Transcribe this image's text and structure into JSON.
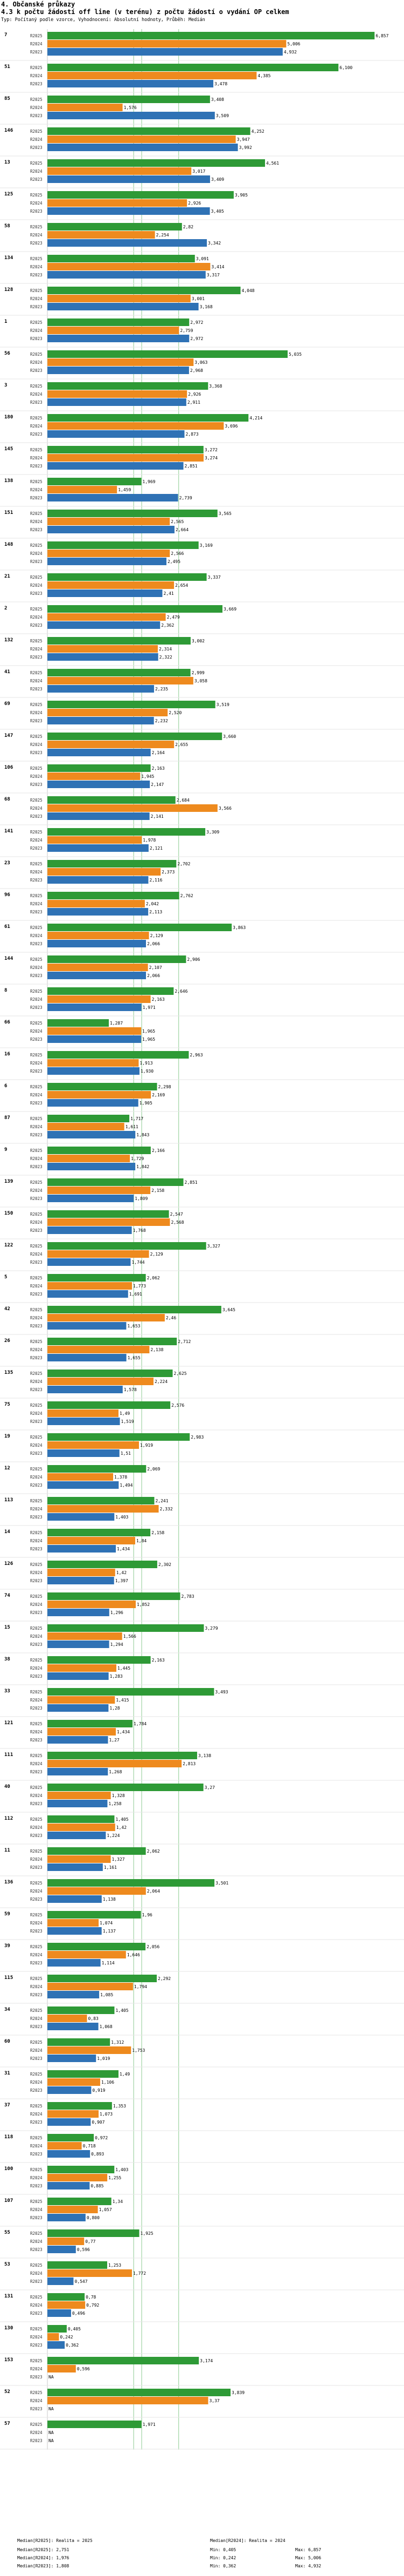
{
  "header": {
    "section": "4. Občanské průkazy",
    "title": "4.3 k počtu žádostí off line (v terénu) z počtu žádostí o vydání OP celkem",
    "meta": "Typ: Počítaný podle vzorce, Vyhodnocení: Absolutní hodnoty, Průběh: Medián"
  },
  "colors": {
    "R2025": "#2e9a36",
    "R2024": "#ee8a1e",
    "R2023": "#2f72b5",
    "median": "#9fd3a3"
  },
  "chart_data": {
    "type": "bar",
    "orientation": "horizontal",
    "series_names": [
      "R2025",
      "R2024",
      "R2023"
    ],
    "xlim": [
      0,
      7.0
    ],
    "medians": {
      "R2025": 2.751,
      "R2024": 1.976,
      "R2023": 1.808
    },
    "groups": [
      {
        "id": "7",
        "values": [
          6.857,
          5.006,
          4.932
        ],
        "labels": [
          "6,857",
          "5,006",
          "4,932"
        ]
      },
      {
        "id": "51",
        "values": [
          6.1,
          4.385,
          3.478
        ],
        "labels": [
          "6,100",
          "4,385",
          "3,478"
        ]
      },
      {
        "id": "85",
        "values": [
          3.408,
          1.576,
          3.509
        ],
        "labels": [
          "3,408",
          "1,576",
          "3,509"
        ]
      },
      {
        "id": "146",
        "values": [
          4.252,
          3.947,
          3.992
        ],
        "labels": [
          "4,252",
          "3,947",
          "3,992"
        ]
      },
      {
        "id": "13",
        "values": [
          4.561,
          3.017,
          3.409
        ],
        "labels": [
          "4,561",
          "3,017",
          "3,409"
        ]
      },
      {
        "id": "125",
        "values": [
          3.905,
          2.926,
          3.405
        ],
        "labels": [
          "3,905",
          "2,926",
          "3,405"
        ]
      },
      {
        "id": "58",
        "values": [
          2.82,
          2.254,
          3.342
        ],
        "labels": [
          "2,82",
          "2,254",
          "3,342"
        ]
      },
      {
        "id": "134",
        "values": [
          3.091,
          3.414,
          3.317
        ],
        "labels": [
          "3,091",
          "3,414",
          "3,317"
        ]
      },
      {
        "id": "128",
        "values": [
          4.048,
          3.001,
          3.168
        ],
        "labels": [
          "4,048",
          "3,001",
          "3,168"
        ]
      },
      {
        "id": "1",
        "values": [
          2.972,
          2.759,
          2.972
        ],
        "labels": [
          "2,972",
          "2,759",
          "2,972"
        ]
      },
      {
        "id": "56",
        "values": [
          5.035,
          3.063,
          2.968
        ],
        "labels": [
          "5,035",
          "3,063",
          "2,968"
        ]
      },
      {
        "id": "3",
        "values": [
          3.368,
          2.926,
          2.911
        ],
        "labels": [
          "3,368",
          "2,926",
          "2,911"
        ]
      },
      {
        "id": "180",
        "values": [
          4.214,
          3.696,
          2.873
        ],
        "labels": [
          "4,214",
          "3,696",
          "2,873"
        ]
      },
      {
        "id": "145",
        "values": [
          3.272,
          3.274,
          2.851
        ],
        "labels": [
          "3,272",
          "3,274",
          "2,851"
        ]
      },
      {
        "id": "138",
        "values": [
          1.969,
          1.459,
          2.739
        ],
        "labels": [
          "1,969",
          "1,459",
          "2,739"
        ]
      },
      {
        "id": "151",
        "values": [
          3.565,
          2.565,
          2.664
        ],
        "labels": [
          "3,565",
          "2,565",
          "2,664"
        ]
      },
      {
        "id": "148",
        "values": [
          3.169,
          2.566,
          2.495
        ],
        "labels": [
          "3,169",
          "2,566",
          "2,495"
        ]
      },
      {
        "id": "21",
        "values": [
          3.337,
          2.654,
          2.41
        ],
        "labels": [
          "3,337",
          "2,654",
          "2,41"
        ]
      },
      {
        "id": "2",
        "values": [
          3.669,
          2.479,
          2.362
        ],
        "labels": [
          "3,669",
          "2,479",
          "2,362"
        ]
      },
      {
        "id": "132",
        "values": [
          3.002,
          2.314,
          2.322
        ],
        "labels": [
          "3,002",
          "2,314",
          "2,322"
        ]
      },
      {
        "id": "41",
        "values": [
          2.999,
          3.058,
          2.235
        ],
        "labels": [
          "2,999",
          "3,058",
          "2,235"
        ]
      },
      {
        "id": "69",
        "values": [
          3.519,
          2.52,
          2.232
        ],
        "labels": [
          "3,519",
          "2,520",
          "2,232"
        ]
      },
      {
        "id": "147",
        "values": [
          3.66,
          2.655,
          2.164
        ],
        "labels": [
          "3,660",
          "2,655",
          "2,164"
        ]
      },
      {
        "id": "106",
        "values": [
          2.163,
          1.945,
          2.147
        ],
        "labels": [
          "2,163",
          "1,945",
          "2,147"
        ]
      },
      {
        "id": "68",
        "values": [
          2.684,
          3.566,
          2.141
        ],
        "labels": [
          "2,684",
          "3,566",
          "2,141"
        ]
      },
      {
        "id": "141",
        "values": [
          3.309,
          1.978,
          2.121
        ],
        "labels": [
          "3,309",
          "1,978",
          "2,121"
        ]
      },
      {
        "id": "23",
        "values": [
          2.702,
          2.373,
          2.116
        ],
        "labels": [
          "2,702",
          "2,373",
          "2,116"
        ]
      },
      {
        "id": "96",
        "values": [
          2.762,
          2.042,
          2.113
        ],
        "labels": [
          "2,762",
          "2,042",
          "2,113"
        ]
      },
      {
        "id": "61",
        "values": [
          3.863,
          2.129,
          2.066
        ],
        "labels": [
          "3,863",
          "2,129",
          "2,066"
        ]
      },
      {
        "id": "144",
        "values": [
          2.906,
          2.107,
          2.066
        ],
        "labels": [
          "2,906",
          "2,107",
          "2,066"
        ]
      },
      {
        "id": "8",
        "values": [
          2.646,
          2.163,
          1.971
        ],
        "labels": [
          "2,646",
          "2,163",
          "1,971"
        ]
      },
      {
        "id": "66",
        "values": [
          1.287,
          1.965,
          1.965
        ],
        "labels": [
          "1,287",
          "1,965",
          "1,965"
        ]
      },
      {
        "id": "16",
        "values": [
          2.963,
          1.913,
          1.93
        ],
        "labels": [
          "2,963",
          "1,913",
          "1,930"
        ]
      },
      {
        "id": "6",
        "values": [
          2.298,
          2.169,
          1.905
        ],
        "labels": [
          "2,298",
          "2,169",
          "1,905"
        ]
      },
      {
        "id": "87",
        "values": [
          1.717,
          1.611,
          1.843
        ],
        "labels": [
          "1,717",
          "1,611",
          "1,843"
        ]
      },
      {
        "id": "9",
        "values": [
          2.166,
          1.729,
          1.842
        ],
        "labels": [
          "2,166",
          "1,729",
          "1,842"
        ]
      },
      {
        "id": "139",
        "values": [
          2.851,
          2.158,
          1.809
        ],
        "labels": [
          "2,851",
          "2,158",
          "1,809"
        ]
      },
      {
        "id": "150",
        "values": [
          2.547,
          2.568,
          1.768
        ],
        "labels": [
          "2,547",
          "2,568",
          "1,768"
        ]
      },
      {
        "id": "122",
        "values": [
          3.327,
          2.129,
          1.744
        ],
        "labels": [
          "3,327",
          "2,129",
          "1,744"
        ]
      },
      {
        "id": "5",
        "values": [
          2.062,
          1.773,
          1.691
        ],
        "labels": [
          "2,062",
          "1,773",
          "1,691"
        ]
      },
      {
        "id": "42",
        "values": [
          3.645,
          2.46,
          1.653
        ],
        "labels": [
          "3,645",
          "2,46",
          "1,653"
        ]
      },
      {
        "id": "26",
        "values": [
          2.712,
          2.138,
          1.655
        ],
        "labels": [
          "2,712",
          "2,138",
          "1,655"
        ]
      },
      {
        "id": "135",
        "values": [
          2.625,
          2.224,
          1.578
        ],
        "labels": [
          "2,625",
          "2,224",
          "1,578"
        ]
      },
      {
        "id": "75",
        "values": [
          2.576,
          1.49,
          1.519
        ],
        "labels": [
          "2,576",
          "1,49",
          "1,519"
        ]
      },
      {
        "id": "19",
        "values": [
          2.983,
          1.919,
          1.51
        ],
        "labels": [
          "2,983",
          "1,919",
          "1,51"
        ]
      },
      {
        "id": "12",
        "values": [
          2.069,
          1.378,
          1.494
        ],
        "labels": [
          "2,069",
          "1,378",
          "1,494"
        ]
      },
      {
        "id": "113",
        "values": [
          2.241,
          2.332,
          1.403
        ],
        "labels": [
          "2,241",
          "2,332",
          "1,403"
        ]
      },
      {
        "id": "14",
        "values": [
          2.158,
          1.84,
          1.434
        ],
        "labels": [
          "2,158",
          "1,84",
          "1,434"
        ]
      },
      {
        "id": "126",
        "values": [
          2.302,
          1.42,
          1.397
        ],
        "labels": [
          "2,302",
          "1,42",
          "1,397"
        ]
      },
      {
        "id": "74",
        "values": [
          2.783,
          1.852,
          1.296
        ],
        "labels": [
          "2,783",
          "1,852",
          "1,296"
        ]
      },
      {
        "id": "15",
        "values": [
          3.279,
          1.566,
          1.294
        ],
        "labels": [
          "3,279",
          "1,566",
          "1,294"
        ]
      },
      {
        "id": "38",
        "values": [
          2.163,
          1.445,
          1.283
        ],
        "labels": [
          "2,163",
          "1,445",
          "1,283"
        ]
      },
      {
        "id": "33",
        "values": [
          3.493,
          1.415,
          1.28
        ],
        "labels": [
          "3,493",
          "1,415",
          "1,28"
        ]
      },
      {
        "id": "121",
        "values": [
          1.784,
          1.434,
          1.27
        ],
        "labels": [
          "1,784",
          "1,434",
          "1,27"
        ]
      },
      {
        "id": "111",
        "values": [
          3.138,
          2.813,
          1.268
        ],
        "labels": [
          "3,138",
          "2,813",
          "1,268"
        ]
      },
      {
        "id": "40",
        "values": [
          3.27,
          1.328,
          1.258
        ],
        "labels": [
          "3,27",
          "1,328",
          "1,258"
        ]
      },
      {
        "id": "112",
        "values": [
          1.405,
          1.42,
          1.224
        ],
        "labels": [
          "1,405",
          "1,42",
          "1,224"
        ]
      },
      {
        "id": "11",
        "values": [
          2.062,
          1.327,
          1.161
        ],
        "labels": [
          "2,062",
          "1,327",
          "1,161"
        ]
      },
      {
        "id": "136",
        "values": [
          3.501,
          2.064,
          1.138
        ],
        "labels": [
          "3,501",
          "2,064",
          "1,138"
        ]
      },
      {
        "id": "59",
        "values": [
          1.96,
          1.074,
          1.137
        ],
        "labels": [
          "1,96",
          "1,074",
          "1,137"
        ]
      },
      {
        "id": "39",
        "values": [
          2.056,
          1.646,
          1.114
        ],
        "labels": [
          "2,056",
          "1,646",
          "1,114"
        ]
      },
      {
        "id": "115",
        "values": [
          2.292,
          1.794,
          1.085
        ],
        "labels": [
          "2,292",
          "1,794",
          "1,085"
        ]
      },
      {
        "id": "34",
        "values": [
          1.405,
          0.83,
          1.068
        ],
        "labels": [
          "1,405",
          "0,83",
          "1,068"
        ]
      },
      {
        "id": "60",
        "values": [
          1.312,
          1.753,
          1.019
        ],
        "labels": [
          "1,312",
          "1,753",
          "1,019"
        ]
      },
      {
        "id": "31",
        "values": [
          1.49,
          1.106,
          0.919
        ],
        "labels": [
          "1,49",
          "1,106",
          "0,919"
        ]
      },
      {
        "id": "37",
        "values": [
          1.353,
          1.073,
          0.907
        ],
        "labels": [
          "1,353",
          "1,073",
          "0,907"
        ]
      },
      {
        "id": "118",
        "values": [
          0.972,
          0.718,
          0.893
        ],
        "labels": [
          "0,972",
          "0,718",
          "0,893"
        ]
      },
      {
        "id": "100",
        "values": [
          1.403,
          1.255,
          0.885
        ],
        "labels": [
          "1,403",
          "1,255",
          "0,885"
        ]
      },
      {
        "id": "107",
        "values": [
          1.34,
          1.057,
          0.8
        ],
        "labels": [
          "1,34",
          "1,057",
          "0,800"
        ]
      },
      {
        "id": "55",
        "values": [
          1.925,
          0.77,
          0.596
        ],
        "labels": [
          "1,925",
          "0,77",
          "0,596"
        ]
      },
      {
        "id": "53",
        "values": [
          1.253,
          1.772,
          0.547
        ],
        "labels": [
          "1,253",
          "1,772",
          "0,547"
        ]
      },
      {
        "id": "131",
        "values": [
          0.78,
          0.792,
          0.496
        ],
        "labels": [
          "0,78",
          "0,792",
          "0,496"
        ]
      },
      {
        "id": "130",
        "values": [
          0.405,
          0.242,
          0.362
        ],
        "labels": [
          "0,405",
          "0,242",
          "0,362"
        ]
      },
      {
        "id": "153",
        "values": [
          3.174,
          0.596,
          null
        ],
        "labels": [
          "3,174",
          "0,596",
          "NA"
        ]
      },
      {
        "id": "52",
        "values": [
          3.839,
          3.37,
          null
        ],
        "labels": [
          "3,839",
          "3,37",
          "NA"
        ]
      },
      {
        "id": "57",
        "values": [
          1.971,
          null,
          null
        ],
        "labels": [
          "1,971",
          "NA",
          "NA"
        ]
      }
    ]
  },
  "footer": {
    "rows": [
      {
        "a": "Median[R2025]: Realita = 2025",
        "b": "Median[R2024]: Realita = 2024"
      },
      {
        "a": "Median[R2025]: 2,751",
        "b": "Min: 0,405",
        "c": "Max: 6,857"
      },
      {
        "a": "Median[R2024]: 1,976",
        "b": "Min: 0,242",
        "c": "Max: 5,006"
      },
      {
        "a": "Median[R2023]: 1,808",
        "b": "Min: 0,362",
        "c": "Max: 4,932"
      }
    ]
  }
}
